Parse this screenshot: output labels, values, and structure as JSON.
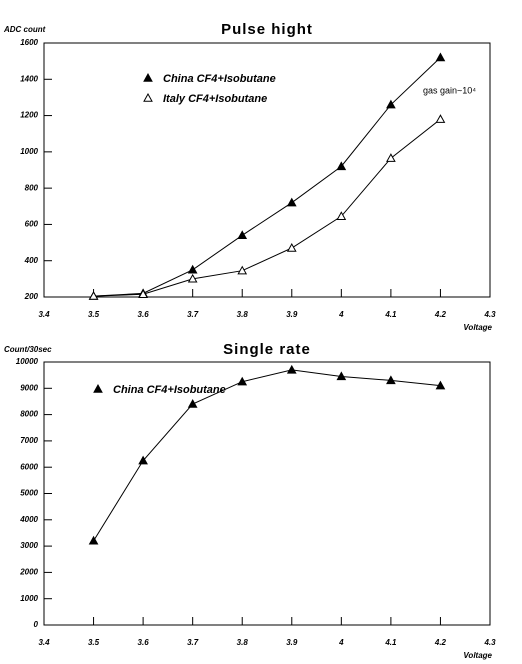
{
  "chart_data": [
    {
      "type": "line",
      "title": "Pulse hight",
      "y_label": "ADC count",
      "x_label": "Voltage",
      "x": [
        3.5,
        3.6,
        3.7,
        3.8,
        3.9,
        4,
        4.1,
        4.2
      ],
      "xlim": [
        3.4,
        4.3
      ],
      "xticks": [
        3.4,
        3.5,
        3.6,
        3.7,
        3.8,
        3.9,
        4,
        4.1,
        4.2,
        4.3
      ],
      "ylim": [
        200,
        1600
      ],
      "yticks": [
        200,
        400,
        600,
        800,
        1000,
        1200,
        1400,
        1600
      ],
      "series": [
        {
          "name": "China CF4+Isobutane",
          "color": "#000000",
          "marker": "filled-triangle",
          "values": [
            205,
            220,
            350,
            540,
            720,
            920,
            1260,
            1520
          ]
        },
        {
          "name": "Italy CF4+Isobutane",
          "color": "#000000",
          "marker": "open-triangle",
          "values": [
            205,
            215,
            300,
            345,
            470,
            645,
            965,
            1180
          ]
        }
      ],
      "annotation": "gas gain~10⁴"
    },
    {
      "type": "line",
      "title": "Single rate",
      "y_label": "Count/30sec",
      "x_label": "Voltage",
      "x": [
        3.5,
        3.6,
        3.7,
        3.8,
        3.9,
        4,
        4.1,
        4.2
      ],
      "xlim": [
        3.4,
        4.3
      ],
      "xticks": [
        3.4,
        3.5,
        3.6,
        3.7,
        3.8,
        3.9,
        4,
        4.1,
        4.2,
        4.3
      ],
      "ylim": [
        0,
        10000
      ],
      "yticks": [
        0,
        1000,
        2000,
        3000,
        4000,
        5000,
        6000,
        7000,
        8000,
        9000,
        10000
      ],
      "series": [
        {
          "name": "China CF4+Isobutane",
          "color": "#000000",
          "marker": "filled-triangle",
          "values": [
            3200,
            6250,
            8400,
            9250,
            9700,
            9450,
            9300,
            9100
          ]
        }
      ]
    }
  ]
}
